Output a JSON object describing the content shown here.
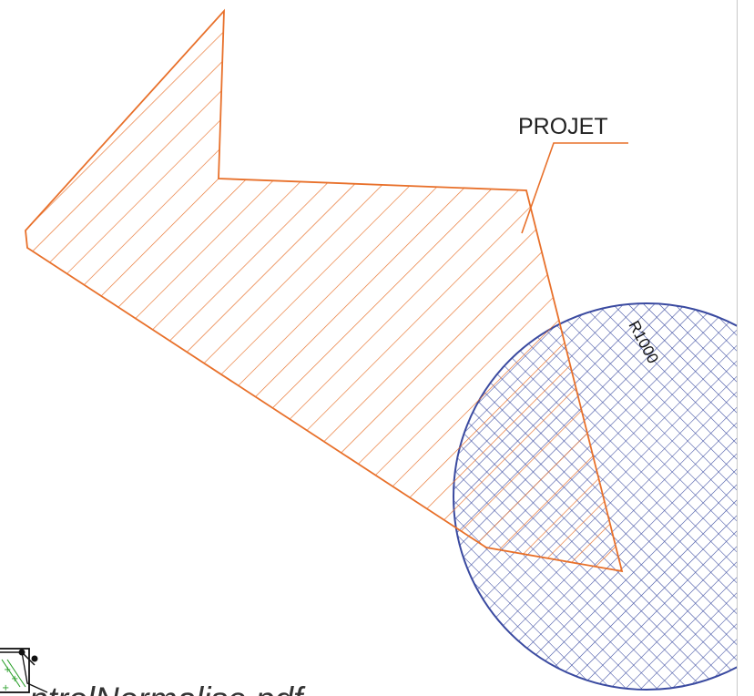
{
  "drawing": {
    "projet_label": "PROJET",
    "radius_label": "R1000",
    "filename_text": "ntrolNormalise.pdf"
  },
  "colors": {
    "projet_stroke": "#e8702a",
    "circle_stroke": "#3a4aa0",
    "text": "#222222",
    "marker_green": "#2ca02c"
  },
  "icons": {
    "pdf_file": "pdf-file-icon"
  }
}
